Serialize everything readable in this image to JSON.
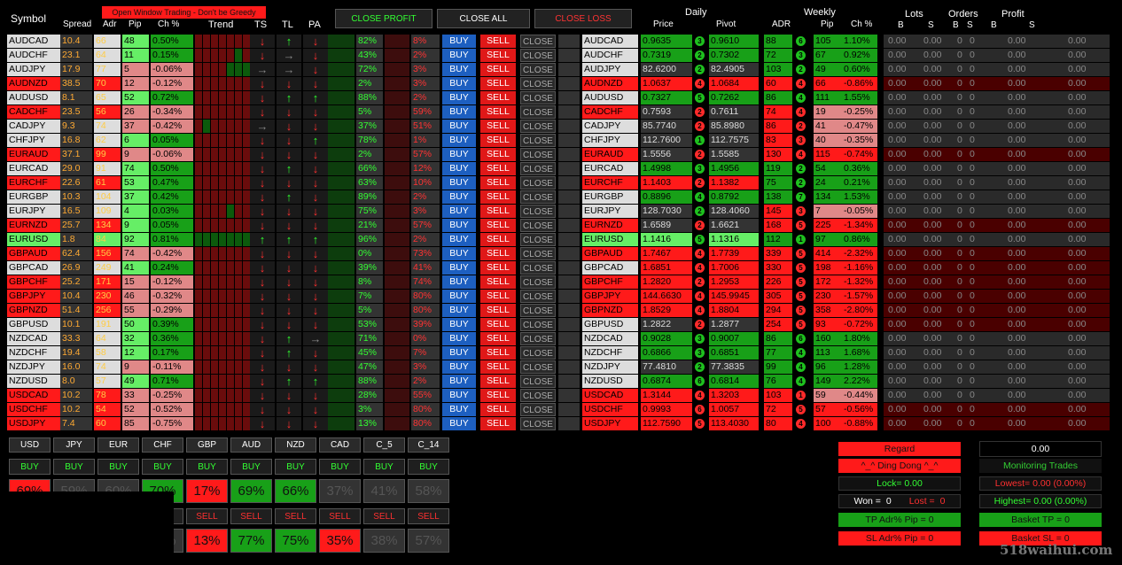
{
  "topbar": {
    "notice": "Open Window Trading - Don't be Greedy",
    "left_text": "Symbol"
  },
  "headers": {
    "symbol": "Symbol",
    "spread": "Spread",
    "adr": "Adr",
    "pip": "Pip",
    "ch": "Ch %",
    "trend": "Trend",
    "ts": "TS",
    "tl": "TL",
    "pa": "PA",
    "daily": "Daily",
    "price": "Price",
    "pivot": "Pivot",
    "weekly": "Weekly",
    "wadr": "ADR",
    "wpip": "Pip",
    "wch": "Ch %",
    "lots": "Lots",
    "orders": "Orders",
    "profit": "Profit",
    "b": "B",
    "s": "S"
  },
  "actions": {
    "close_profit": "CLOSE PROFIT",
    "close_all": "CLOSE ALL",
    "close_loss": "CLOSE LOSS"
  },
  "row_labels": {
    "buy": "BUY",
    "sell": "SELL",
    "close": "CLOSE"
  },
  "colors": {
    "red": "#ff1a1a",
    "green": "#18a018",
    "blue": "#1d5fc0"
  },
  "rows": [
    {
      "sym": "AUDCAD",
      "symc": "wt",
      "spread": "10.4",
      "adr": "66",
      "pip": "48",
      "ch": "0.50%",
      "chc": "grn",
      "ts": "r",
      "tl": "g",
      "pa": "r",
      "p1": "82%",
      "p2": "8%",
      "price": "0.9635",
      "pc": "grn",
      "d": "3",
      "dc": "g",
      "pivot": "0.9610",
      "wadr": "88",
      "wd": "6",
      "wdc": "g",
      "wpip": "105",
      "wch": "1.10%",
      "wchc": "grn",
      "trend": [
        "r",
        "r",
        "r",
        "r",
        "r",
        "r",
        "r"
      ]
    },
    {
      "sym": "AUDCHF",
      "symc": "wt",
      "spread": "23.1",
      "adr": "64",
      "pip": "11",
      "ch": "0.15%",
      "chc": "grn",
      "ts": "r",
      "tl": "x",
      "pa": "r",
      "p1": "43%",
      "p2": "2%",
      "price": "0.7319",
      "pc": "grn",
      "d": "2",
      "dc": "g",
      "pivot": "0.7302",
      "wadr": "72",
      "wd": "3",
      "wdc": "g",
      "wpip": "67",
      "wch": "0.92%",
      "wchc": "grn",
      "trend": [
        "r",
        "r",
        "r",
        "r",
        "r",
        "g",
        "r"
      ]
    },
    {
      "sym": "AUDJPY",
      "symc": "wt",
      "spread": "17.9",
      "adr": "77",
      "pip": "5",
      "ch": "-0.06%",
      "chc": "pk",
      "ts": "x",
      "tl": "x",
      "pa": "r",
      "p1": "72%",
      "p2": "3%",
      "price": "82.6200",
      "pc": "dk",
      "d": "2",
      "dc": "g",
      "pivot": "82.4905",
      "wadr": "103",
      "wd": "2",
      "wdc": "g",
      "wpip": "49",
      "wch": "0.60%",
      "wchc": "grn",
      "trend": [
        "r",
        "r",
        "r",
        "r",
        "g",
        "g",
        "g"
      ]
    },
    {
      "sym": "AUDNZD",
      "symc": "rd",
      "spread": "38.5",
      "adr": "70",
      "pip": "12",
      "ch": "-0.12%",
      "chc": "pk",
      "ts": "r",
      "tl": "r",
      "pa": "r",
      "p1": "2%",
      "p2": "3%",
      "price": "1.0637",
      "pc": "rd",
      "d": "4",
      "dc": "r",
      "pivot": "1.0684",
      "wadr": "60",
      "wd": "4",
      "wdc": "r",
      "wpip": "66",
      "wch": "-0.86%",
      "wchc": "rd",
      "trend": [
        "r",
        "r",
        "r",
        "r",
        "r",
        "r",
        "r"
      ]
    },
    {
      "sym": "AUDUSD",
      "symc": "wt",
      "spread": "8.1",
      "adr": "65",
      "pip": "52",
      "ch": "0.72%",
      "chc": "grn",
      "ts": "r",
      "tl": "g",
      "pa": "g",
      "p1": "88%",
      "p2": "2%",
      "price": "0.7327",
      "pc": "grn",
      "d": "5",
      "dc": "g",
      "pivot": "0.7262",
      "wadr": "86",
      "wd": "4",
      "wdc": "g",
      "wpip": "111",
      "wch": "1.55%",
      "wchc": "grn",
      "trend": [
        "r",
        "r",
        "r",
        "r",
        "r",
        "r",
        "r"
      ]
    },
    {
      "sym": "CADCHF",
      "symc": "rd",
      "spread": "23.5",
      "adr": "56",
      "pip": "26",
      "ch": "-0.34%",
      "chc": "pk",
      "ts": "r",
      "tl": "r",
      "pa": "r",
      "p1": "5%",
      "p2": "59%",
      "price": "0.7593",
      "pc": "dk",
      "d": "2",
      "dc": "r",
      "pivot": "0.7611",
      "wadr": "74",
      "wd": "4",
      "wdc": "r",
      "wpip": "19",
      "wch": "-0.25%",
      "wchc": "pk",
      "trend": [
        "r",
        "r",
        "r",
        "r",
        "r",
        "r",
        "r"
      ]
    },
    {
      "sym": "CADJPY",
      "symc": "wt",
      "spread": "9.3",
      "adr": "74",
      "pip": "37",
      "ch": "-0.42%",
      "chc": "pk",
      "ts": "x",
      "tl": "r",
      "pa": "r",
      "p1": "37%",
      "p2": "51%",
      "price": "85.7740",
      "pc": "dk",
      "d": "2",
      "dc": "r",
      "pivot": "85.8980",
      "wadr": "86",
      "wd": "2",
      "wdc": "r",
      "wpip": "41",
      "wch": "-0.47%",
      "wchc": "pk",
      "trend": [
        "r",
        "g",
        "r",
        "r",
        "r",
        "r",
        "r"
      ]
    },
    {
      "sym": "CHFJPY",
      "symc": "wt",
      "spread": "16.8",
      "adr": "62",
      "pip": "6",
      "ch": "0.05%",
      "chc": "grn",
      "ts": "r",
      "tl": "r",
      "pa": "g",
      "p1": "78%",
      "p2": "1%",
      "price": "112.7600",
      "pc": "dk",
      "d": "1",
      "dc": "g",
      "pivot": "112.7575",
      "wadr": "83",
      "wd": "3",
      "wdc": "r",
      "wpip": "40",
      "wch": "-0.35%",
      "wchc": "pk",
      "trend": [
        "r",
        "r",
        "r",
        "r",
        "r",
        "r",
        "r"
      ]
    },
    {
      "sym": "EURAUD",
      "symc": "rd",
      "spread": "37.1",
      "adr": "99",
      "pip": "9",
      "ch": "-0.06%",
      "chc": "pk",
      "ts": "r",
      "tl": "r",
      "pa": "r",
      "p1": "2%",
      "p2": "57%",
      "price": "1.5556",
      "pc": "dk",
      "d": "2",
      "dc": "r",
      "pivot": "1.5585",
      "wadr": "130",
      "wd": "4",
      "wdc": "r",
      "wpip": "115",
      "wch": "-0.74%",
      "wchc": "rd",
      "trend": [
        "r",
        "r",
        "r",
        "r",
        "r",
        "r",
        "r"
      ]
    },
    {
      "sym": "EURCAD",
      "symc": "wt",
      "spread": "29.0",
      "adr": "91",
      "pip": "74",
      "ch": "0.50%",
      "chc": "grn",
      "ts": "r",
      "tl": "g",
      "pa": "r",
      "p1": "66%",
      "p2": "12%",
      "price": "1.4998",
      "pc": "grn",
      "d": "3",
      "dc": "g",
      "pivot": "1.4956",
      "wadr": "119",
      "wd": "2",
      "wdc": "g",
      "wpip": "54",
      "wch": "0.36%",
      "wchc": "grn",
      "trend": [
        "r",
        "r",
        "r",
        "r",
        "r",
        "r",
        "r"
      ]
    },
    {
      "sym": "EURCHF",
      "symc": "rd",
      "spread": "22.6",
      "adr": "61",
      "pip": "53",
      "ch": "0.47%",
      "chc": "grn",
      "ts": "r",
      "tl": "r",
      "pa": "r",
      "p1": "63%",
      "p2": "10%",
      "price": "1.1403",
      "pc": "rd",
      "d": "2",
      "dc": "r",
      "pivot": "1.1382",
      "wadr": "75",
      "wd": "2",
      "wdc": "g",
      "wpip": "24",
      "wch": "0.21%",
      "wchc": "grn",
      "trend": [
        "r",
        "r",
        "r",
        "r",
        "r",
        "r",
        "r"
      ]
    },
    {
      "sym": "EURGBP",
      "symc": "wt",
      "spread": "10.3",
      "adr": "104",
      "pip": "37",
      "ch": "0.42%",
      "chc": "grn",
      "ts": "r",
      "tl": "g",
      "pa": "r",
      "p1": "89%",
      "p2": "2%",
      "price": "0.8896",
      "pc": "grn",
      "d": "4",
      "dc": "g",
      "pivot": "0.8792",
      "wadr": "138",
      "wd": "7",
      "wdc": "g",
      "wpip": "134",
      "wch": "1.53%",
      "wchc": "grn",
      "trend": [
        "r",
        "r",
        "r",
        "r",
        "r",
        "r",
        "r"
      ]
    },
    {
      "sym": "EURJPY",
      "symc": "wt",
      "spread": "16.5",
      "adr": "109",
      "pip": "4",
      "ch": "0.03%",
      "chc": "grn",
      "ts": "r",
      "tl": "r",
      "pa": "r",
      "p1": "75%",
      "p2": "3%",
      "price": "128.7030",
      "pc": "dk",
      "d": "2",
      "dc": "g",
      "pivot": "128.4060",
      "wadr": "145",
      "wd": "3",
      "wdc": "r",
      "wpip": "7",
      "wch": "-0.05%",
      "wchc": "pk",
      "trend": [
        "r",
        "r",
        "r",
        "r",
        "g",
        "r",
        "r"
      ]
    },
    {
      "sym": "EURNZD",
      "symc": "rd",
      "spread": "25.7",
      "adr": "134",
      "pip": "9",
      "ch": "0.05%",
      "chc": "grn",
      "ts": "r",
      "tl": "r",
      "pa": "r",
      "p1": "21%",
      "p2": "57%",
      "price": "1.6589",
      "pc": "dk",
      "d": "2",
      "dc": "r",
      "pivot": "1.6621",
      "wadr": "168",
      "wd": "5",
      "wdc": "r",
      "wpip": "225",
      "wch": "-1.34%",
      "wchc": "rd",
      "trend": [
        "r",
        "r",
        "r",
        "r",
        "r",
        "r",
        "r"
      ]
    },
    {
      "sym": "EURUSD",
      "symc": "lg",
      "spread": "1.8",
      "adr": "84",
      "pip": "92",
      "ch": "0.81%",
      "chc": "grn",
      "ts": "g",
      "tl": "g",
      "pa": "g",
      "p1": "96%",
      "p2": "2%",
      "price": "1.1416",
      "pc": "lg",
      "d": "5",
      "dc": "g",
      "pivot": "1.1316",
      "wadr": "112",
      "wd": "1",
      "wdc": "g",
      "wpip": "97",
      "wch": "0.86%",
      "wchc": "grn",
      "trend": [
        "g",
        "g",
        "g",
        "g",
        "g",
        "g",
        "g"
      ]
    },
    {
      "sym": "GBPAUD",
      "symc": "rd",
      "spread": "62.4",
      "adr": "156",
      "pip": "74",
      "ch": "-0.42%",
      "chc": "pk",
      "ts": "r",
      "tl": "r",
      "pa": "r",
      "p1": "0%",
      "p2": "73%",
      "price": "1.7467",
      "pc": "rd",
      "d": "4",
      "dc": "r",
      "pivot": "1.7739",
      "wadr": "339",
      "wd": "5",
      "wdc": "r",
      "wpip": "414",
      "wch": "-2.32%",
      "wchc": "rd",
      "trend": [
        "r",
        "r",
        "r",
        "r",
        "r",
        "r",
        "r"
      ]
    },
    {
      "sym": "GBPCAD",
      "symc": "wt",
      "spread": "26.9",
      "adr": "249",
      "pip": "41",
      "ch": "0.24%",
      "chc": "grn",
      "ts": "r",
      "tl": "r",
      "pa": "r",
      "p1": "39%",
      "p2": "41%",
      "price": "1.6851",
      "pc": "rd",
      "d": "4",
      "dc": "r",
      "pivot": "1.7006",
      "wadr": "330",
      "wd": "5",
      "wdc": "r",
      "wpip": "198",
      "wch": "-1.16%",
      "wchc": "rd",
      "trend": [
        "r",
        "r",
        "r",
        "r",
        "r",
        "r",
        "r"
      ]
    },
    {
      "sym": "GBPCHF",
      "symc": "rd",
      "spread": "25.2",
      "adr": "171",
      "pip": "15",
      "ch": "-0.12%",
      "chc": "pk",
      "ts": "r",
      "tl": "r",
      "pa": "r",
      "p1": "8%",
      "p2": "74%",
      "price": "1.2820",
      "pc": "rd",
      "d": "2",
      "dc": "r",
      "pivot": "1.2953",
      "wadr": "226",
      "wd": "5",
      "wdc": "r",
      "wpip": "172",
      "wch": "-1.32%",
      "wchc": "rd",
      "trend": [
        "r",
        "r",
        "r",
        "r",
        "r",
        "r",
        "r"
      ]
    },
    {
      "sym": "GBPJPY",
      "symc": "rd",
      "spread": "10.4",
      "adr": "230",
      "pip": "46",
      "ch": "-0.32%",
      "chc": "pk",
      "ts": "r",
      "tl": "r",
      "pa": "r",
      "p1": "7%",
      "p2": "80%",
      "price": "144.6630",
      "pc": "rd",
      "d": "4",
      "dc": "r",
      "pivot": "145.9945",
      "wadr": "305",
      "wd": "5",
      "wdc": "r",
      "wpip": "230",
      "wch": "-1.57%",
      "wchc": "rd",
      "trend": [
        "r",
        "r",
        "r",
        "r",
        "r",
        "r",
        "r"
      ]
    },
    {
      "sym": "GBPNZD",
      "symc": "rd",
      "spread": "51.4",
      "adr": "256",
      "pip": "55",
      "ch": "-0.29%",
      "chc": "pk",
      "ts": "r",
      "tl": "r",
      "pa": "r",
      "p1": "5%",
      "p2": "80%",
      "price": "1.8529",
      "pc": "rd",
      "d": "4",
      "dc": "r",
      "pivot": "1.8804",
      "wadr": "294",
      "wd": "5",
      "wdc": "r",
      "wpip": "358",
      "wch": "-2.80%",
      "wchc": "rd",
      "trend": [
        "r",
        "r",
        "r",
        "r",
        "r",
        "r",
        "r"
      ]
    },
    {
      "sym": "GBPUSD",
      "symc": "wt",
      "spread": "10.1",
      "adr": "191",
      "pip": "50",
      "ch": "0.39%",
      "chc": "grn",
      "ts": "r",
      "tl": "r",
      "pa": "r",
      "p1": "53%",
      "p2": "39%",
      "price": "1.2822",
      "pc": "dk",
      "d": "2",
      "dc": "r",
      "pivot": "1.2877",
      "wadr": "254",
      "wd": "5",
      "wdc": "r",
      "wpip": "93",
      "wch": "-0.72%",
      "wchc": "rd",
      "trend": [
        "r",
        "r",
        "r",
        "r",
        "r",
        "r",
        "r"
      ]
    },
    {
      "sym": "NZDCAD",
      "symc": "wt",
      "spread": "33.3",
      "adr": "64",
      "pip": "32",
      "ch": "0.36%",
      "chc": "grn",
      "ts": "r",
      "tl": "g",
      "pa": "x",
      "p1": "71%",
      "p2": "0%",
      "price": "0.9028",
      "pc": "grn",
      "d": "3",
      "dc": "g",
      "pivot": "0.9007",
      "wadr": "86",
      "wd": "6",
      "wdc": "g",
      "wpip": "160",
      "wch": "1.80%",
      "wchc": "grn",
      "trend": [
        "r",
        "r",
        "r",
        "r",
        "r",
        "r",
        "r"
      ]
    },
    {
      "sym": "NZDCHF",
      "symc": "wt",
      "spread": "19.4",
      "adr": "58",
      "pip": "12",
      "ch": "0.17%",
      "chc": "grn",
      "ts": "r",
      "tl": "g",
      "pa": "r",
      "p1": "45%",
      "p2": "7%",
      "price": "0.6866",
      "pc": "grn",
      "d": "3",
      "dc": "g",
      "pivot": "0.6851",
      "wadr": "77",
      "wd": "4",
      "wdc": "g",
      "wpip": "113",
      "wch": "1.68%",
      "wchc": "grn",
      "trend": [
        "r",
        "r",
        "r",
        "r",
        "r",
        "r",
        "r"
      ]
    },
    {
      "sym": "NZDJPY",
      "symc": "wt",
      "spread": "16.0",
      "adr": "74",
      "pip": "9",
      "ch": "-0.11%",
      "chc": "pk",
      "ts": "r",
      "tl": "r",
      "pa": "r",
      "p1": "47%",
      "p2": "3%",
      "price": "77.4810",
      "pc": "dk",
      "d": "2",
      "dc": "g",
      "pivot": "77.3835",
      "wadr": "99",
      "wd": "4",
      "wdc": "g",
      "wpip": "96",
      "wch": "1.28%",
      "wchc": "grn",
      "trend": [
        "r",
        "r",
        "r",
        "r",
        "r",
        "r",
        "r"
      ]
    },
    {
      "sym": "NZDUSD",
      "symc": "wt",
      "spread": "8.0",
      "adr": "57",
      "pip": "49",
      "ch": "0.71%",
      "chc": "grn",
      "ts": "r",
      "tl": "g",
      "pa": "g",
      "p1": "88%",
      "p2": "2%",
      "price": "0.6874",
      "pc": "grn",
      "d": "6",
      "dc": "g",
      "pivot": "0.6814",
      "wadr": "76",
      "wd": "4",
      "wdc": "g",
      "wpip": "149",
      "wch": "2.22%",
      "wchc": "grn",
      "trend": [
        "r",
        "r",
        "r",
        "r",
        "r",
        "r",
        "r"
      ]
    },
    {
      "sym": "USDCAD",
      "symc": "rd",
      "spread": "10.2",
      "adr": "78",
      "pip": "33",
      "ch": "-0.25%",
      "chc": "pk",
      "ts": "r",
      "tl": "r",
      "pa": "r",
      "p1": "28%",
      "p2": "55%",
      "price": "1.3144",
      "pc": "rd",
      "d": "4",
      "dc": "r",
      "pivot": "1.3203",
      "wadr": "103",
      "wd": "1",
      "wdc": "r",
      "wpip": "59",
      "wch": "-0.44%",
      "wchc": "pk",
      "trend": [
        "r",
        "r",
        "r",
        "r",
        "r",
        "r",
        "r"
      ]
    },
    {
      "sym": "USDCHF",
      "symc": "rd",
      "spread": "10.2",
      "adr": "54",
      "pip": "52",
      "ch": "-0.52%",
      "chc": "pk",
      "ts": "r",
      "tl": "r",
      "pa": "r",
      "p1": "3%",
      "p2": "80%",
      "price": "0.9993",
      "pc": "rd",
      "d": "6",
      "dc": "r",
      "pivot": "1.0057",
      "wadr": "72",
      "wd": "5",
      "wdc": "r",
      "wpip": "57",
      "wch": "-0.56%",
      "wchc": "rd",
      "trend": [
        "r",
        "r",
        "r",
        "r",
        "r",
        "r",
        "r"
      ]
    },
    {
      "sym": "USDJPY",
      "symc": "rd",
      "spread": "7.4",
      "adr": "60",
      "pip": "85",
      "ch": "-0.75%",
      "chc": "pk",
      "ts": "r",
      "tl": "r",
      "pa": "r",
      "p1": "13%",
      "p2": "80%",
      "price": "112.7590",
      "pc": "rd",
      "d": "5",
      "dc": "r",
      "pivot": "113.4030",
      "wadr": "80",
      "wd": "4",
      "wdc": "r",
      "wpip": "100",
      "wch": "-0.88%",
      "wchc": "rd",
      "trend": [
        "r",
        "r",
        "r",
        "r",
        "r",
        "r",
        "r"
      ]
    }
  ],
  "empty_val": "0.00",
  "empty_int": "0",
  "currencies": [
    "USD",
    "JPY",
    "EUR",
    "CHF",
    "GBP",
    "AUD",
    "NZD",
    "CAD",
    "C_5",
    "C_14"
  ],
  "buy_pcts": [
    "69%",
    "59%",
    "60%",
    "70%",
    "17%",
    "69%",
    "66%",
    "37%",
    "41%",
    "58%"
  ],
  "buy_pct_colors": [
    "rd",
    "dk",
    "dk",
    "grn",
    "rd",
    "grn",
    "grn",
    "dk",
    "dk",
    "dk"
  ],
  "sell_pcts": [
    "31%",
    "41%",
    "40%",
    "30%",
    "13%",
    "77%",
    "75%",
    "35%",
    "38%",
    "57%"
  ],
  "sell_pct_colors": [
    "dk",
    "dk",
    "dk",
    "dk",
    "rd",
    "grn",
    "grn",
    "rd",
    "dk",
    "dk"
  ],
  "right_panel": {
    "regard": "Regard",
    "ding": "^_^ Ding Dong ^_^",
    "lock": "Lock= 0.00",
    "won": "Won =",
    "won_val": "0",
    "lost": "Lost =",
    "lost_val": "0",
    "tp": "TP Adr% Pip = 0",
    "sl": "SL Adr% Pip = 0",
    "total": "0.00",
    "monitor": "Monitoring Trades",
    "lowest": "Lowest= 0.00 (0.00%)",
    "highest": "Highest= 0.00 (0.00%)",
    "basket_tp": "Basket TP = 0",
    "basket_sl": "Basket SL = 0"
  },
  "watermark": "518waihui.com"
}
